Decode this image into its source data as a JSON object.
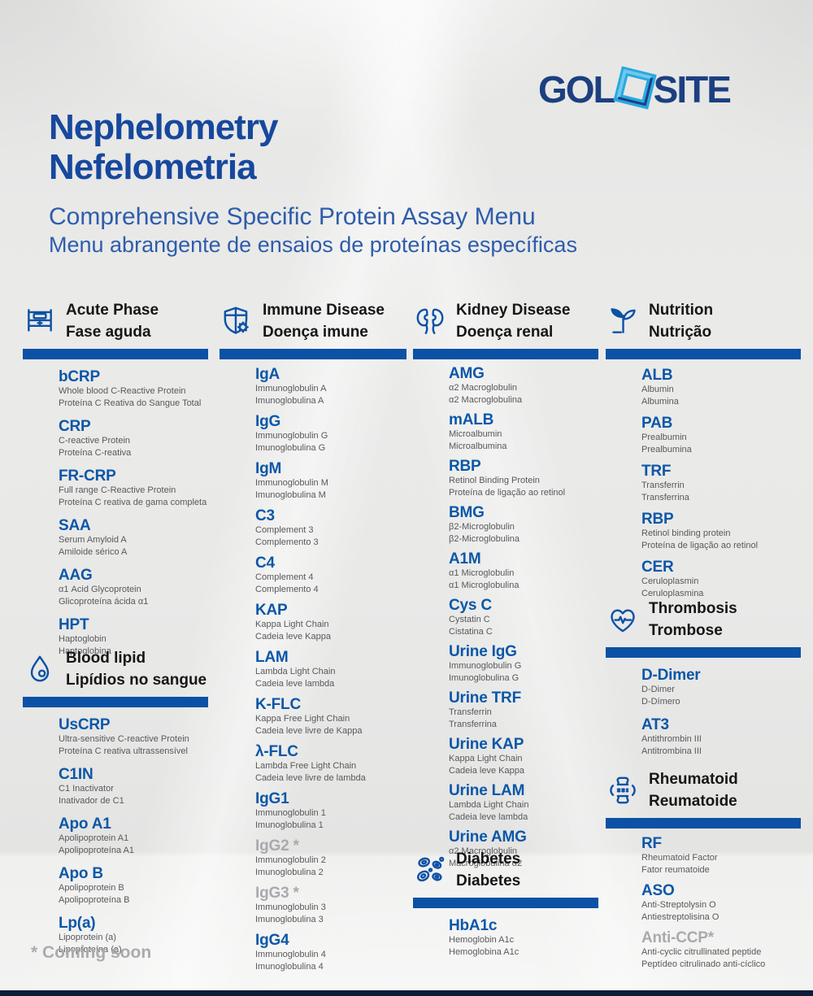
{
  "logo": {
    "part1": "GOL",
    "part2": "SITE"
  },
  "title": {
    "line1": "Nephelometry",
    "line2": "Nefelometria"
  },
  "subtitle": {
    "line1": "Comprehensive Specific Protein Assay Menu",
    "line2": "Menu abrangente de ensaios de proteínas específicas"
  },
  "footer_note": "* Coming soon",
  "colors": {
    "accent_blue": "#0b51a5",
    "abbr_blue": "#0b57a8",
    "text_gray": "#58595b",
    "muted_gray": "#a8aaad",
    "title_navy": "#17489d",
    "logo_navy": "#1c3f80",
    "diamond_light_blue": "#29a8e0",
    "bottom_bar_navy": "#0d1c38"
  },
  "sections": [
    {
      "id": "acute-phase",
      "icon": "bed-icon",
      "title_en": "Acute Phase",
      "title_pt": "Fase aguda",
      "items": [
        {
          "abbr": "bCRP",
          "en": "Whole blood C-Reactive Protein",
          "pt": "Proteína C Reativa do Sangue Total",
          "muted": false
        },
        {
          "abbr": "CRP",
          "en": "C-reactive Protein",
          "pt": "Proteína C-reativa",
          "muted": false
        },
        {
          "abbr": "FR-CRP",
          "en": "Full range C-Reactive Protein",
          "pt": "Proteína C reativa de gama completa",
          "muted": false
        },
        {
          "abbr": "SAA",
          "en": "Serum Amyloid A",
          "pt": "Amiloide sérico A",
          "muted": false
        },
        {
          "abbr": "AAG",
          "en": "α1 Acid Glycoprotein",
          "pt": "Glicoproteína ácida α1",
          "muted": false
        },
        {
          "abbr": "HPT",
          "en": "Haptoglobin",
          "pt": "Haptoglobina",
          "muted": false
        }
      ]
    },
    {
      "id": "blood-lipid",
      "icon": "droplet-icon",
      "title_en": "Blood lipid",
      "title_pt": "Lipídios no sangue",
      "items": [
        {
          "abbr": "UsCRP",
          "en": "Ultra-sensitive C-reactive Protein",
          "pt": "Proteína C reativa ultrassensível",
          "muted": false
        },
        {
          "abbr": "C1IN",
          "en": "C1 Inactivator",
          "pt": "Inativador de C1",
          "muted": false
        },
        {
          "abbr": "Apo A1",
          "en": "Apolipoprotein A1",
          "pt": "Apolipoproteína A1",
          "muted": false
        },
        {
          "abbr": "Apo B",
          "en": "Apolipoprotein B",
          "pt": "Apolipoproteína B",
          "muted": false
        },
        {
          "abbr": "Lp(a)",
          "en": "Lipoprotein (a)",
          "pt": "Lipoproteína (a)",
          "muted": false
        }
      ]
    },
    {
      "id": "immune-disease",
      "icon": "shield-virus-icon",
      "title_en": "Immune Disease",
      "title_pt": "Doença imune",
      "items": [
        {
          "abbr": "IgA",
          "en": "Immunoglobulin A",
          "pt": "Imunoglobulina A",
          "muted": false
        },
        {
          "abbr": "IgG",
          "en": "Immunoglobulin G",
          "pt": "Imunoglobulina G",
          "muted": false
        },
        {
          "abbr": "IgM",
          "en": "Immunoglobulin M",
          "pt": "Imunoglobulina M",
          "muted": false
        },
        {
          "abbr": "C3",
          "en": "Complement 3",
          "pt": "Complemento 3",
          "muted": false
        },
        {
          "abbr": "C4",
          "en": "Complement 4",
          "pt": "Complemento 4",
          "muted": false
        },
        {
          "abbr": "KAP",
          "en": "Kappa Light Chain",
          "pt": "Cadeia leve Kappa",
          "muted": false
        },
        {
          "abbr": "LAM",
          "en": "Lambda Light Chain",
          "pt": "Cadeia leve lambda",
          "muted": false
        },
        {
          "abbr": "K-FLC",
          "en": "Kappa Free Light Chain",
          "pt": "Cadeia leve livre de Kappa",
          "muted": false
        },
        {
          "abbr": "λ-FLC",
          "en": "Lambda Free Light Chain",
          "pt": "Cadeia leve livre de lambda",
          "muted": false
        },
        {
          "abbr": "IgG1",
          "en": "Immunoglobulin 1",
          "pt": "Imunoglobulina 1",
          "muted": false
        },
        {
          "abbr": "IgG2 *",
          "en": "Immunoglobulin 2",
          "pt": "Imunoglobulina 2",
          "muted": true
        },
        {
          "abbr": "IgG3 *",
          "en": "Immunoglobulin 3",
          "pt": "Imunoglobulina 3",
          "muted": true
        },
        {
          "abbr": "IgG4",
          "en": "Immunoglobulin 4",
          "pt": "Imunoglobulina 4",
          "muted": false
        }
      ]
    },
    {
      "id": "kidney-disease",
      "icon": "kidneys-icon",
      "title_en": "Kidney Disease",
      "title_pt": "Doença renal",
      "items": [
        {
          "abbr": "AMG",
          "en": "α2 Macroglobulin",
          "pt": "α2 Macroglobulina",
          "muted": false
        },
        {
          "abbr": "mALB",
          "en": "Microalbumin",
          "pt": "Microalbumina",
          "muted": false
        },
        {
          "abbr": "RBP",
          "en": "Retinol Binding Protein",
          "pt": "Proteína de ligação ao retinol",
          "muted": false
        },
        {
          "abbr": "BMG",
          "en": "β2-Microglobulin",
          "pt": "β2-Microglobulina",
          "muted": false
        },
        {
          "abbr": "A1M",
          "en": "α1 Microglobulin",
          "pt": "α1 Microglobulina",
          "muted": false
        },
        {
          "abbr": "Cys C",
          "en": "Cystatin C",
          "pt": "Cistatina C",
          "muted": false
        },
        {
          "abbr": "Urine IgG",
          "en": "Immunoglobulin G",
          "pt": "Imunoglobulina G",
          "muted": false
        },
        {
          "abbr": "Urine TRF",
          "en": "Transferrin",
          "pt": "Transferrina",
          "muted": false
        },
        {
          "abbr": "Urine KAP",
          "en": "Kappa Light Chain",
          "pt": "Cadeia leve Kappa",
          "muted": false
        },
        {
          "abbr": "Urine LAM",
          "en": "Lambda Light Chain",
          "pt": "Cadeia leve lambda",
          "muted": false
        },
        {
          "abbr": "Urine AMG",
          "en": "α2 Macroglobulin",
          "pt": "Macroglobulina α2",
          "muted": false
        }
      ]
    },
    {
      "id": "diabetes",
      "icon": "blood-cells-icon",
      "title_en": "Diabetes",
      "title_pt": "Diabetes",
      "items": [
        {
          "abbr": "HbA1c",
          "en": "Hemoglobin A1c",
          "pt": "Hemoglobina A1c",
          "muted": false
        }
      ]
    },
    {
      "id": "nutrition",
      "icon": "leaf-icon",
      "title_en": "Nutrition",
      "title_pt": "Nutrição",
      "items": [
        {
          "abbr": "ALB",
          "en": "Albumin",
          "pt": "Albumina",
          "muted": false
        },
        {
          "abbr": "PAB",
          "en": "Prealbumin",
          "pt": "Prealbumina",
          "muted": false
        },
        {
          "abbr": "TRF",
          "en": "Transferrin",
          "pt": "Transferrina",
          "muted": false
        },
        {
          "abbr": "RBP",
          "en": "Retinol binding protein",
          "pt": "Proteína de ligação ao retinol",
          "muted": false
        },
        {
          "abbr": "CER",
          "en": "Ceruloplasmin",
          "pt": "Ceruloplasmina",
          "muted": false
        }
      ]
    },
    {
      "id": "thrombosis",
      "icon": "heart-pulse-icon",
      "title_en": "Thrombosis",
      "title_pt": "Trombose",
      "items": [
        {
          "abbr": "D-Dimer",
          "en": "D-Dimer",
          "pt": "D-Dímero",
          "muted": false
        },
        {
          "abbr": "AT3",
          "en": "Antithrombin III",
          "pt": "Antitrombina III",
          "muted": false
        }
      ]
    },
    {
      "id": "rheumatoid",
      "icon": "joint-icon",
      "title_en": "Rheumatoid",
      "title_pt": "Reumatoide",
      "items": [
        {
          "abbr": "RF",
          "en": "Rheumatoid Factor",
          "pt": "Fator reumatoide",
          "muted": false
        },
        {
          "abbr": "ASO",
          "en": "Anti-Streptolysin O",
          "pt": "Antiestreptolisina O",
          "muted": false
        },
        {
          "abbr": "Anti-CCP*",
          "en": "Anti-cyclic citrullinated peptide",
          "pt": "Peptídeo citrulinado anti-cíclico",
          "muted": true
        }
      ]
    }
  ]
}
